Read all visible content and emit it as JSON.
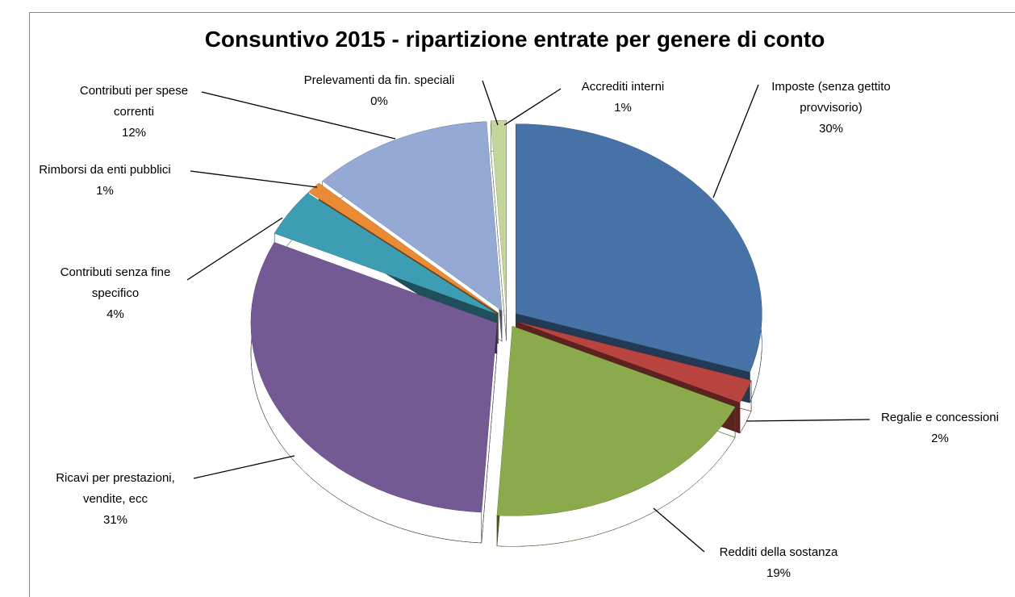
{
  "chart_data": {
    "type": "pie3d",
    "title": "Consuntivo 2015 - ripartizione entrate per genere di conto",
    "categories": [
      "Imposte (senza gettito provvisorio)",
      "Regalie e concessioni",
      "Redditi della sostanza",
      "Ricavi per prestazioni, vendite, ecc",
      "Contributi senza fine specifico",
      "Rimborsi da enti pubblici",
      "Contributi per spese correnti",
      "Prelevamenti da fin. speciali",
      "Accrediti interni"
    ],
    "values": [
      30,
      2,
      19,
      31,
      4,
      1,
      12,
      0,
      1
    ],
    "value_labels": [
      "30%",
      "2%",
      "19%",
      "31%",
      "4%",
      "1%",
      "12%",
      "0%",
      "1%"
    ],
    "colors": [
      "#4672a8",
      "#b8433f",
      "#8aaa4b",
      "#735a95",
      "#3d9db3",
      "#e88b34",
      "#94a9d3",
      "#d99594",
      "#c3d59b"
    ]
  }
}
